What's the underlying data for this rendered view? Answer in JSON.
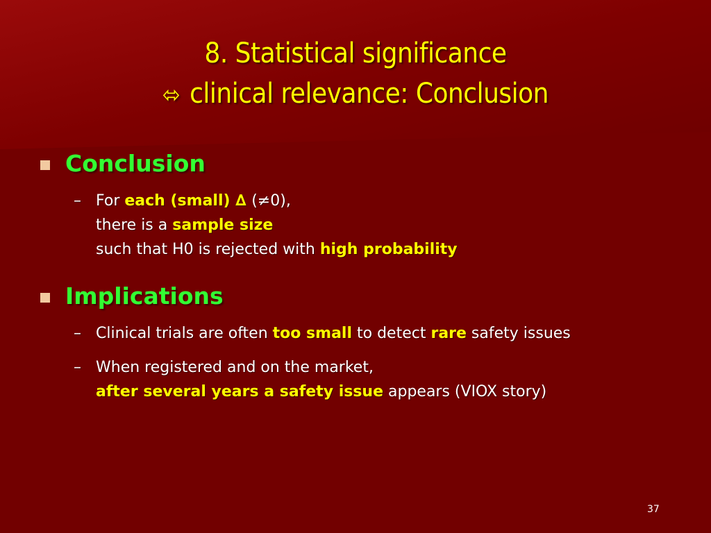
{
  "slide": {
    "title_line1": "8. Statistical significance",
    "title_arrow": "⬄",
    "title_line2": "clinical relevance: Conclusion",
    "page_number": "37"
  },
  "sections": [
    {
      "heading": "Conclusion",
      "items": [
        {
          "lines": [
            [
              {
                "t": "For ",
                "hl": false
              },
              {
                "t": "each  (small)",
                "hl": true
              },
              {
                "t": " ∆ ",
                "hl": true
              },
              {
                "t": "(≠0),",
                "hl": false
              }
            ],
            [
              {
                "t": "there is a ",
                "hl": false
              },
              {
                "t": "sample size",
                "hl": true
              }
            ],
            [
              {
                "t": "such that H0 is rejected with ",
                "hl": false
              },
              {
                "t": "high probability",
                "hl": true
              }
            ]
          ]
        }
      ]
    },
    {
      "heading": "Implications",
      "items": [
        {
          "lines": [
            [
              {
                "t": "Clinical trials are often ",
                "hl": false
              },
              {
                "t": "too small",
                "hl": true
              },
              {
                "t": " to detect ",
                "hl": false
              },
              {
                "t": "rare",
                "hl": true
              },
              {
                "t": " safety issues",
                "hl": false
              }
            ]
          ]
        },
        {
          "lines": [
            [
              {
                "t": "When registered and on the market,",
                "hl": false
              }
            ],
            [
              {
                "t": "after several years a safety issue",
                "hl": true
              },
              {
                "t": " appears (VIOX story)",
                "hl": false
              }
            ]
          ]
        }
      ]
    }
  ],
  "colors": {
    "background": "#7a0000",
    "title": "#ffff00",
    "heading": "#33ff33",
    "highlight": "#ffff00",
    "body_text": "#ffffff",
    "bullet": "#f2c9a0"
  }
}
